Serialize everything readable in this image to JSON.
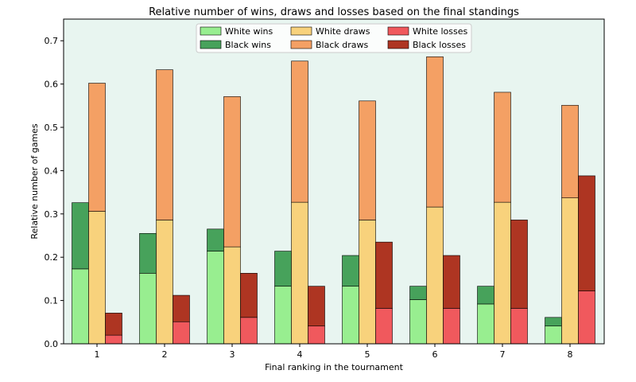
{
  "chart_data": {
    "type": "bar",
    "title": "Relative number of wins, draws and losses based on the final standings",
    "xlabel": "Final ranking in the tournament",
    "ylabel": "Relative number of games",
    "categories": [
      "1",
      "2",
      "3",
      "4",
      "5",
      "6",
      "7",
      "8"
    ],
    "ylim": [
      0,
      0.75
    ],
    "yticks": [
      "0.0",
      "0.1",
      "0.2",
      "0.3",
      "0.4",
      "0.5",
      "0.6",
      "0.7"
    ],
    "grid": false,
    "legend_position": "top-center",
    "background_color": "#e8f5f0",
    "groups": [
      {
        "name": "wins",
        "stack": [
          {
            "name": "White wins",
            "color": "#98ee90",
            "values": [
              0.173,
              0.163,
              0.214,
              0.133,
              0.133,
              0.102,
              0.092,
              0.041
            ]
          },
          {
            "name": "Black wins",
            "color": "#47a25b",
            "values": [
              0.153,
              0.092,
              0.051,
              0.081,
              0.071,
              0.031,
              0.041,
              0.02
            ]
          }
        ]
      },
      {
        "name": "draws",
        "stack": [
          {
            "name": "White draws",
            "color": "#f8d27c",
            "values": [
              0.306,
              0.286,
              0.224,
              0.327,
              0.286,
              0.316,
              0.327,
              0.337
            ]
          },
          {
            "name": "Black draws",
            "color": "#f4a064",
            "values": [
              0.296,
              0.347,
              0.347,
              0.326,
              0.275,
              0.347,
              0.254,
              0.214
            ]
          }
        ]
      },
      {
        "name": "losses",
        "stack": [
          {
            "name": "White losses",
            "color": "#f0595d",
            "values": [
              0.02,
              0.051,
              0.061,
              0.041,
              0.082,
              0.082,
              0.082,
              0.122
            ]
          },
          {
            "name": "Black losses",
            "color": "#ae3522",
            "values": [
              0.051,
              0.061,
              0.102,
              0.092,
              0.153,
              0.122,
              0.204,
              0.266
            ]
          }
        ]
      }
    ],
    "legend_columns": [
      [
        "White wins",
        "Black wins"
      ],
      [
        "White draws",
        "Black draws"
      ],
      [
        "White losses",
        "Black losses"
      ]
    ]
  }
}
